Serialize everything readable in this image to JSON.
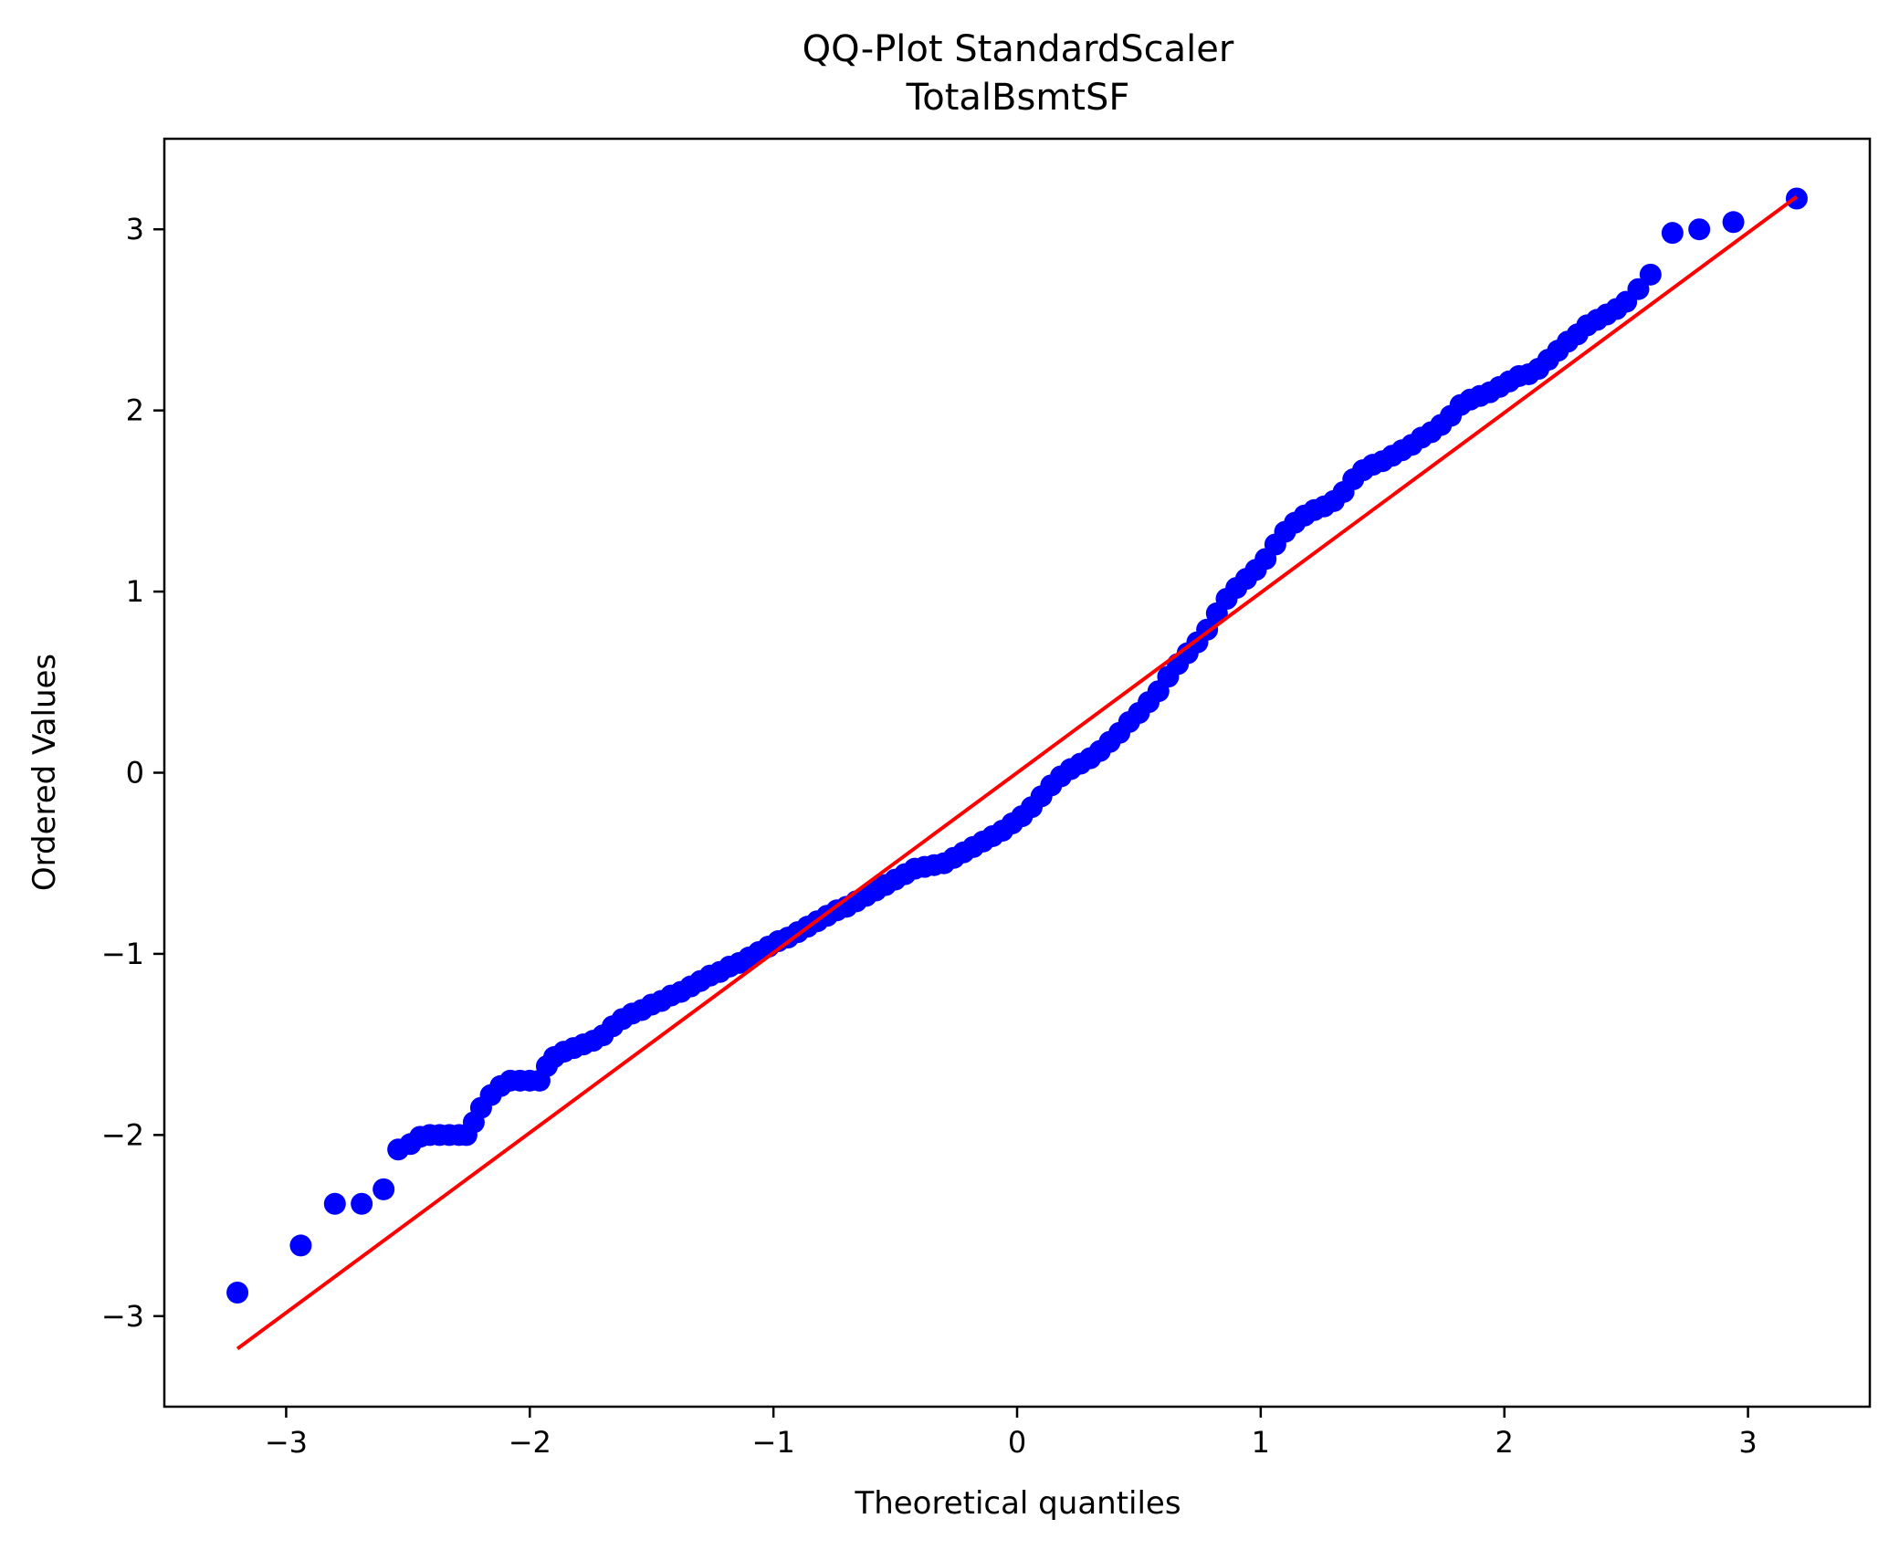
{
  "chart_data": {
    "type": "scatter",
    "title": "QQ-Plot StandardScaler",
    "subtitle": "TotalBsmtSF",
    "xlabel": "Theoretical quantiles",
    "ylabel": "Ordered Values",
    "xlim": [
      -3.5,
      3.5
    ],
    "ylim": [
      -3.5,
      3.5
    ],
    "x_ticks": [
      -3,
      -2,
      -1,
      0,
      1,
      2,
      3
    ],
    "y_ticks": [
      -3,
      -2,
      -1,
      0,
      1,
      2,
      3
    ],
    "x_tick_labels": [
      "−3",
      "−2",
      "−1",
      "0",
      "1",
      "2",
      "3"
    ],
    "y_tick_labels": [
      "−3",
      "−2",
      "−1",
      "0",
      "1",
      "2",
      "3"
    ],
    "grid": false,
    "series": [
      {
        "kind": "points",
        "color": "#0000ff",
        "points": [
          [
            -3.2,
            -2.87
          ],
          [
            -2.94,
            -2.61
          ],
          [
            -2.8,
            -2.38
          ],
          [
            -2.69,
            -2.38
          ],
          [
            -2.6,
            -2.3
          ],
          [
            -2.54,
            -2.08
          ],
          [
            -2.49,
            -2.05
          ],
          [
            -2.45,
            -2.01
          ],
          [
            -2.41,
            -2.0
          ],
          [
            -2.37,
            -2.0
          ],
          [
            -2.33,
            -2.0
          ],
          [
            -2.29,
            -2.0
          ],
          [
            -2.26,
            -2.0
          ],
          [
            -2.23,
            -1.93
          ],
          [
            -2.2,
            -1.85
          ],
          [
            -2.16,
            -1.78
          ],
          [
            -2.12,
            -1.73
          ],
          [
            -2.08,
            -1.7
          ],
          [
            -2.04,
            -1.7
          ],
          [
            -2.0,
            -1.7
          ],
          [
            -1.96,
            -1.7
          ],
          [
            -1.93,
            -1.62
          ],
          [
            -1.9,
            -1.57
          ],
          [
            -1.86,
            -1.54
          ],
          [
            -1.82,
            -1.52
          ],
          [
            -1.78,
            -1.5
          ],
          [
            -1.74,
            -1.48
          ],
          [
            -1.7,
            -1.45
          ],
          [
            -1.66,
            -1.4
          ],
          [
            -1.62,
            -1.36
          ],
          [
            -1.58,
            -1.33
          ],
          [
            -1.54,
            -1.31
          ],
          [
            -1.5,
            -1.28
          ],
          [
            -1.46,
            -1.26
          ],
          [
            -1.42,
            -1.23
          ],
          [
            -1.38,
            -1.21
          ],
          [
            -1.34,
            -1.18
          ],
          [
            -1.3,
            -1.15
          ],
          [
            -1.26,
            -1.12
          ],
          [
            -1.22,
            -1.1
          ],
          [
            -1.18,
            -1.07
          ],
          [
            -1.14,
            -1.05
          ],
          [
            -1.1,
            -1.02
          ],
          [
            -1.06,
            -0.99
          ],
          [
            -1.02,
            -0.96
          ],
          [
            -0.98,
            -0.93
          ],
          [
            -0.94,
            -0.91
          ],
          [
            -0.9,
            -0.88
          ],
          [
            -0.86,
            -0.85
          ],
          [
            -0.82,
            -0.82
          ],
          [
            -0.78,
            -0.79
          ],
          [
            -0.74,
            -0.76
          ],
          [
            -0.7,
            -0.74
          ],
          [
            -0.66,
            -0.71
          ],
          [
            -0.62,
            -0.68
          ],
          [
            -0.58,
            -0.65
          ],
          [
            -0.54,
            -0.62
          ],
          [
            -0.5,
            -0.59
          ],
          [
            -0.46,
            -0.56
          ],
          [
            -0.42,
            -0.53
          ],
          [
            -0.38,
            -0.52
          ],
          [
            -0.34,
            -0.51
          ],
          [
            -0.3,
            -0.5
          ],
          [
            -0.26,
            -0.47
          ],
          [
            -0.22,
            -0.44
          ],
          [
            -0.18,
            -0.41
          ],
          [
            -0.14,
            -0.38
          ],
          [
            -0.1,
            -0.35
          ],
          [
            -0.06,
            -0.32
          ],
          [
            -0.02,
            -0.28
          ],
          [
            0.02,
            -0.24
          ],
          [
            0.06,
            -0.19
          ],
          [
            0.1,
            -0.13
          ],
          [
            0.14,
            -0.07
          ],
          [
            0.18,
            -0.02
          ],
          [
            0.22,
            0.02
          ],
          [
            0.26,
            0.05
          ],
          [
            0.3,
            0.08
          ],
          [
            0.34,
            0.12
          ],
          [
            0.38,
            0.17
          ],
          [
            0.42,
            0.22
          ],
          [
            0.46,
            0.28
          ],
          [
            0.5,
            0.33
          ],
          [
            0.54,
            0.39
          ],
          [
            0.58,
            0.45
          ],
          [
            0.62,
            0.53
          ],
          [
            0.66,
            0.6
          ],
          [
            0.7,
            0.66
          ],
          [
            0.74,
            0.72
          ],
          [
            0.78,
            0.79
          ],
          [
            0.82,
            0.88
          ],
          [
            0.86,
            0.96
          ],
          [
            0.9,
            1.02
          ],
          [
            0.94,
            1.07
          ],
          [
            0.98,
            1.12
          ],
          [
            1.02,
            1.18
          ],
          [
            1.06,
            1.26
          ],
          [
            1.1,
            1.33
          ],
          [
            1.14,
            1.38
          ],
          [
            1.18,
            1.42
          ],
          [
            1.22,
            1.45
          ],
          [
            1.26,
            1.47
          ],
          [
            1.3,
            1.5
          ],
          [
            1.34,
            1.55
          ],
          [
            1.38,
            1.62
          ],
          [
            1.42,
            1.67
          ],
          [
            1.46,
            1.7
          ],
          [
            1.5,
            1.72
          ],
          [
            1.54,
            1.75
          ],
          [
            1.58,
            1.78
          ],
          [
            1.62,
            1.81
          ],
          [
            1.66,
            1.85
          ],
          [
            1.7,
            1.88
          ],
          [
            1.74,
            1.92
          ],
          [
            1.78,
            1.97
          ],
          [
            1.82,
            2.03
          ],
          [
            1.86,
            2.06
          ],
          [
            1.9,
            2.08
          ],
          [
            1.94,
            2.1
          ],
          [
            1.98,
            2.13
          ],
          [
            2.02,
            2.16
          ],
          [
            2.06,
            2.19
          ],
          [
            2.1,
            2.2
          ],
          [
            2.14,
            2.23
          ],
          [
            2.18,
            2.28
          ],
          [
            2.22,
            2.33
          ],
          [
            2.26,
            2.38
          ],
          [
            2.3,
            2.42
          ],
          [
            2.34,
            2.47
          ],
          [
            2.38,
            2.5
          ],
          [
            2.42,
            2.53
          ],
          [
            2.46,
            2.56
          ],
          [
            2.5,
            2.6
          ],
          [
            2.55,
            2.67
          ],
          [
            2.6,
            2.75
          ],
          [
            2.69,
            2.98
          ],
          [
            2.8,
            3.0
          ],
          [
            2.94,
            3.04
          ],
          [
            3.2,
            3.17
          ]
        ]
      },
      {
        "kind": "line",
        "color": "#ff0000",
        "x": [
          -3.2,
          3.2
        ],
        "y": [
          -3.18,
          3.18
        ]
      }
    ]
  }
}
